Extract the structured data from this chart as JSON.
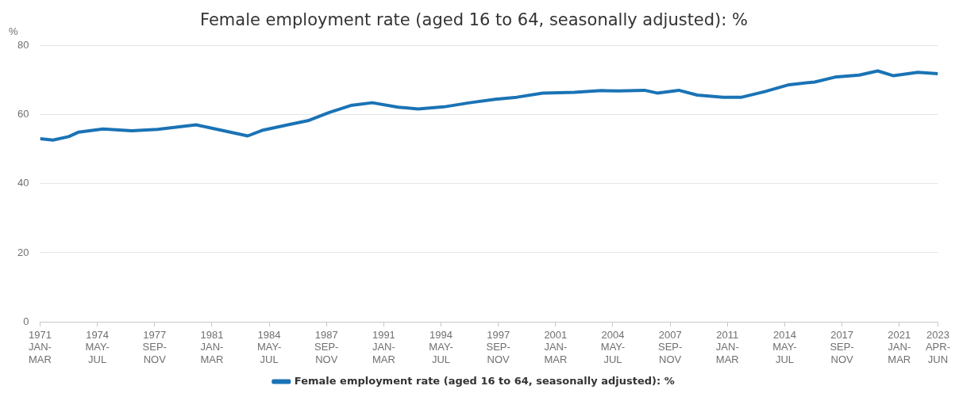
{
  "chart_data": {
    "type": "line",
    "title": "Female employment rate (aged 16 to 64, seasonally adjusted): %",
    "ylabel": "%",
    "series": [
      {
        "name": "Female employment rate (aged 16 to 64, seasonally adjusted): %",
        "color": "#1a73b5",
        "x": [
          "1971-01",
          "1971-10",
          "1972-09",
          "1973-04",
          "1974-09",
          "1976-05",
          "1977-11",
          "1980-02",
          "1980-11",
          "1983-02",
          "1983-12",
          "1985-06",
          "1986-08",
          "1987-11",
          "1989-02",
          "1990-05",
          "1991-11",
          "1993-01",
          "1994-07",
          "1996-01",
          "1997-07",
          "1998-10",
          "2000-04",
          "2002-02",
          "2003-09",
          "2004-09",
          "2006-03",
          "2006-12",
          "2008-03",
          "2009-04",
          "2010-10",
          "2011-11",
          "2013-03",
          "2014-08",
          "2016-02",
          "2017-04",
          "2018-09",
          "2019-10",
          "2020-09",
          "2022-02",
          "2023-04"
        ],
        "values": [
          53.0,
          52.6,
          53.6,
          54.9,
          55.8,
          55.3,
          55.7,
          57.0,
          56.2,
          53.8,
          55.4,
          57.0,
          58.2,
          60.6,
          62.6,
          63.4,
          62.1,
          61.6,
          62.2,
          63.4,
          64.4,
          65.0,
          66.2,
          66.4,
          66.9,
          66.8,
          67.0,
          66.2,
          67.0,
          65.6,
          65.0,
          65.0,
          66.6,
          68.6,
          69.4,
          70.8,
          71.4,
          72.6,
          71.2,
          72.2,
          71.8
        ]
      }
    ],
    "xlim": [
      "1971-01",
      "2023-04"
    ],
    "xticks": [
      {
        "value": "1971-01",
        "label": "1971 JAN-MAR"
      },
      {
        "value": "1974-05",
        "label": "1974 MAY-JUL"
      },
      {
        "value": "1977-09",
        "label": "1977 SEP-NOV"
      },
      {
        "value": "1981-01",
        "label": "1981 JAN-MAR"
      },
      {
        "value": "1984-05",
        "label": "1984 MAY-JUL"
      },
      {
        "value": "1987-09",
        "label": "1987 SEP-NOV"
      },
      {
        "value": "1991-01",
        "label": "1991 JAN-MAR"
      },
      {
        "value": "1994-05",
        "label": "1994 MAY-JUL"
      },
      {
        "value": "1997-09",
        "label": "1997 SEP-NOV"
      },
      {
        "value": "2001-01",
        "label": "2001 JAN-MAR"
      },
      {
        "value": "2004-05",
        "label": "2004 MAY-JUL"
      },
      {
        "value": "2007-09",
        "label": "2007 SEP-NOV"
      },
      {
        "value": "2011-01",
        "label": "2011 JAN-MAR"
      },
      {
        "value": "2014-05",
        "label": "2014 MAY-JUL"
      },
      {
        "value": "2017-09",
        "label": "2017 SEP-NOV"
      },
      {
        "value": "2021-01",
        "label": "2021 JAN-MAR"
      },
      {
        "value": "2023-04",
        "label": "2023 APR-JUN"
      }
    ],
    "ylim": [
      0,
      80
    ],
    "yticks": [
      0,
      20,
      40,
      60,
      80
    ],
    "grid": "y",
    "legend": "bottom"
  }
}
